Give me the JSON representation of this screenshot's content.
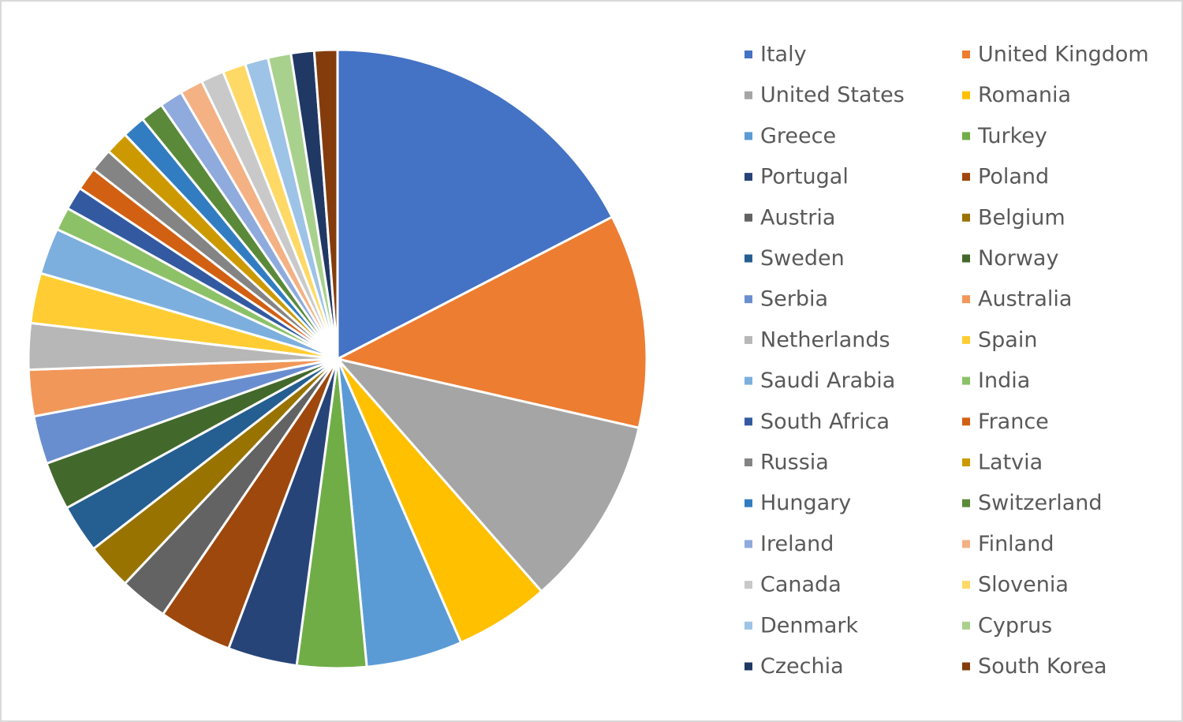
{
  "chart_data": {
    "type": "pie",
    "categories": [
      "Italy",
      "United Kingdom",
      "United States",
      "Romania",
      "Greece",
      "Turkey",
      "Portugal",
      "Poland",
      "Austria",
      "Belgium",
      "Sweden",
      "Norway",
      "Serbia",
      "Australia",
      "Netherlands",
      "Spain",
      "Saudi Arabia",
      "India",
      "South Africa",
      "France",
      "Russia",
      "Latvia",
      "Hungary",
      "Switzerland",
      "Ireland",
      "Finland",
      "Canada",
      "Slovenia",
      "Denmark",
      "Cyprus",
      "Czechia",
      "South Korea"
    ],
    "values": [
      17.3,
      11.1,
      9.9,
      4.9,
      5.0,
      3.6,
      3.6,
      3.8,
      2.5,
      2.4,
      2.5,
      2.5,
      2.5,
      2.4,
      2.4,
      2.6,
      2.4,
      1.2,
      1.2,
      1.2,
      1.2,
      1.2,
      1.2,
      1.2,
      1.2,
      1.2,
      1.2,
      1.2,
      1.2,
      1.2,
      1.2,
      1.2
    ],
    "colors": [
      "#4472c4",
      "#ed7d31",
      "#a5a5a5",
      "#ffc000",
      "#5b9bd5",
      "#70ad47",
      "#264478",
      "#9e480e",
      "#636363",
      "#997300",
      "#255e91",
      "#43682b",
      "#698ed0",
      "#f1975a",
      "#b7b7b7",
      "#ffcd33",
      "#7cafdd",
      "#8cc168",
      "#335aa1",
      "#d26012",
      "#848484",
      "#cc9a00",
      "#327dc2",
      "#5a8a39",
      "#8faadc",
      "#f4b183",
      "#c9c9c9",
      "#ffd966",
      "#9dc3e6",
      "#a9d18e",
      "#203864",
      "#843c0c"
    ],
    "legend": "right"
  }
}
